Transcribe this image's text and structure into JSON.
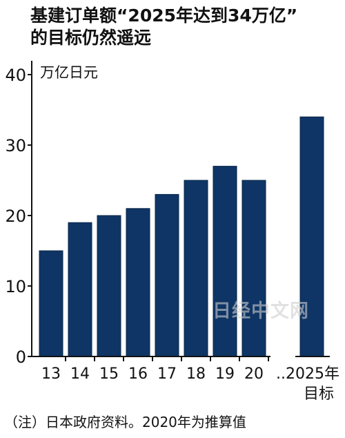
{
  "title": [
    "基建订单额“2025年达到34万亿”",
    "的目标仍然遥远"
  ],
  "footnote": "（注）日本政府资料。2020年为推算值",
  "watermark": "日经中文网",
  "colors": {
    "bar": "#0e3565",
    "axis": "#111111",
    "text": "#111111"
  },
  "chart_data": {
    "type": "bar",
    "title": "基建订单额“2025年达到34万亿”的目标仍然遥远",
    "ylabel": "万亿日元",
    "xlabel": "",
    "ylim": [
      0,
      40
    ],
    "yticks": [
      0,
      10,
      20,
      30,
      40
    ],
    "grid": false,
    "categories": [
      "13",
      "14",
      "15",
      "16",
      "17",
      "18",
      "19",
      "20",
      "..2025年"
    ],
    "category_sublabels": [
      "",
      "",
      "",
      "",
      "",
      "",
      "",
      "",
      "目标"
    ],
    "values": [
      15,
      19,
      20,
      21,
      23,
      25,
      27,
      25,
      34
    ]
  }
}
